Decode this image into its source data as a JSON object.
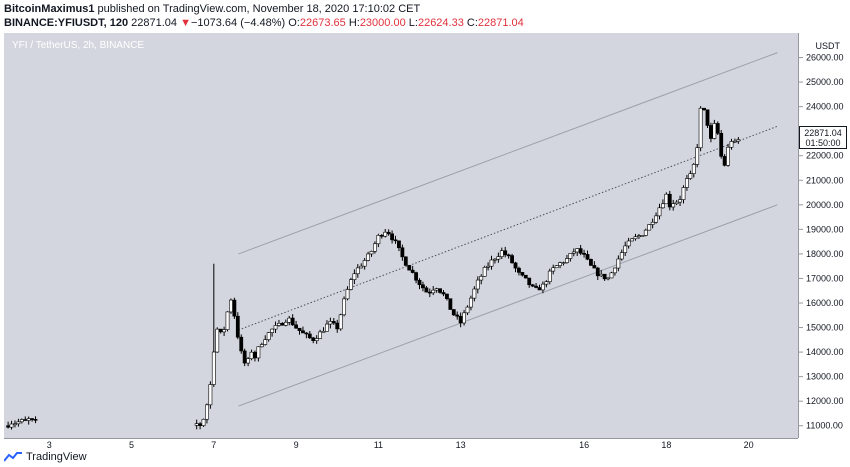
{
  "header": {
    "author": "BitcoinMaximus1",
    "published": "published on TradingView.com, November 18, 2020 17:10:02 CET",
    "symbol": "BINANCE:YFIUSDT, 120",
    "last": "22871.04",
    "change_arrow": "▼",
    "change": "−1073.64 (−4.48%)",
    "open_label": "O:",
    "open": "22673.65",
    "high_label": "H:",
    "high": "23000.00",
    "low_label": "L:",
    "low": "22624.33",
    "close_label": "C:",
    "close": "22871.04"
  },
  "chart_title": "YFI / TetherUS, 2h, BINANCE",
  "currency": "USDT",
  "last_price_label": "22871.04",
  "countdown": "01:50:00",
  "brand": "TradingView",
  "colors": {
    "background": "#d3d6de",
    "candle_up": "#ffffff",
    "candle_down": "#000000",
    "channel_line": "#9aa0ab",
    "accent_red": "#e0313c",
    "brand_blue": "#2962ff"
  },
  "chart_data": {
    "type": "candlestick",
    "title": "YFI / TetherUS, 2h, BINANCE",
    "ylabel": "USDT",
    "ylim": [
      10500,
      27000
    ],
    "y_ticks": [
      11000,
      12000,
      13000,
      14000,
      15000,
      16000,
      17000,
      18000,
      19000,
      20000,
      21000,
      22000,
      23000,
      24000,
      25000,
      26000
    ],
    "x_ticks": [
      "3",
      "5",
      "7",
      "9",
      "11",
      "13",
      "16",
      "18",
      "20"
    ],
    "x_range_days": [
      1.9,
      21.2
    ],
    "current_price": 22871.04,
    "price_path": [
      [
        2.0,
        11050
      ],
      [
        2.1,
        11150
      ],
      [
        2.2,
        11100
      ],
      [
        2.3,
        11200
      ],
      [
        2.4,
        11150
      ],
      [
        2.5,
        11250
      ],
      [
        2.6,
        11180
      ],
      [
        2.7,
        11100
      ],
      [
        6.5,
        10900
      ],
      [
        6.6,
        11100
      ],
      [
        6.7,
        11000
      ],
      [
        6.8,
        11600
      ],
      [
        6.9,
        12400
      ],
      [
        6.95,
        13200
      ],
      [
        7.0,
        14100
      ],
      [
        7.05,
        14800
      ],
      [
        7.1,
        15000
      ],
      [
        7.2,
        14600
      ],
      [
        7.3,
        15300
      ],
      [
        7.4,
        16300
      ],
      [
        7.5,
        15500
      ],
      [
        7.6,
        14500
      ],
      [
        7.7,
        13700
      ],
      [
        7.8,
        13400
      ],
      [
        7.9,
        14100
      ],
      [
        8.0,
        13800
      ],
      [
        8.1,
        14200
      ],
      [
        8.2,
        14500
      ],
      [
        8.4,
        14900
      ],
      [
        8.6,
        15100
      ],
      [
        8.8,
        15400
      ],
      [
        9.0,
        15000
      ],
      [
        9.2,
        14700
      ],
      [
        9.4,
        14500
      ],
      [
        9.6,
        14800
      ],
      [
        9.8,
        15200
      ],
      [
        10.0,
        15000
      ],
      [
        10.2,
        16300
      ],
      [
        10.4,
        17200
      ],
      [
        10.6,
        17600
      ],
      [
        10.8,
        18000
      ],
      [
        11.0,
        18700
      ],
      [
        11.2,
        19000
      ],
      [
        11.4,
        18500
      ],
      [
        11.6,
        17800
      ],
      [
        11.8,
        17300
      ],
      [
        12.0,
        16800
      ],
      [
        12.2,
        16400
      ],
      [
        12.4,
        16700
      ],
      [
        12.6,
        16300
      ],
      [
        12.8,
        15600
      ],
      [
        13.0,
        15200
      ],
      [
        13.2,
        16000
      ],
      [
        13.4,
        16800
      ],
      [
        13.6,
        17400
      ],
      [
        13.8,
        17800
      ],
      [
        14.0,
        18100
      ],
      [
        14.2,
        17800
      ],
      [
        14.4,
        17200
      ],
      [
        14.6,
        16900
      ],
      [
        14.8,
        16500
      ],
      [
        15.0,
        16700
      ],
      [
        15.2,
        17300
      ],
      [
        15.4,
        17600
      ],
      [
        15.6,
        17800
      ],
      [
        15.8,
        18200
      ],
      [
        16.0,
        17900
      ],
      [
        16.2,
        17400
      ],
      [
        16.4,
        17100
      ],
      [
        16.6,
        17000
      ],
      [
        16.8,
        17700
      ],
      [
        17.0,
        18300
      ],
      [
        17.2,
        18600
      ],
      [
        17.4,
        18800
      ],
      [
        17.6,
        19200
      ],
      [
        17.8,
        19800
      ],
      [
        18.0,
        20400
      ],
      [
        18.1,
        19900
      ],
      [
        18.2,
        20200
      ],
      [
        18.3,
        20100
      ],
      [
        18.4,
        20600
      ],
      [
        18.5,
        21000
      ],
      [
        18.6,
        21200
      ],
      [
        18.7,
        21800
      ],
      [
        18.8,
        23000
      ],
      [
        18.85,
        24300
      ],
      [
        18.9,
        23900
      ],
      [
        19.0,
        23300
      ],
      [
        19.1,
        22500
      ],
      [
        19.2,
        23600
      ],
      [
        19.3,
        22200
      ],
      [
        19.4,
        21500
      ],
      [
        19.5,
        22300
      ],
      [
        19.6,
        22700
      ],
      [
        19.7,
        22400
      ],
      [
        19.8,
        22871
      ]
    ],
    "channel": {
      "upper": {
        "from": [
          7.6,
          18000
        ],
        "to": [
          20.7,
          26200
        ]
      },
      "middle": {
        "from": [
          7.6,
          14900
        ],
        "to": [
          20.7,
          23200
        ]
      },
      "lower": {
        "from": [
          7.6,
          11800
        ],
        "to": [
          20.7,
          20000
        ]
      }
    }
  }
}
